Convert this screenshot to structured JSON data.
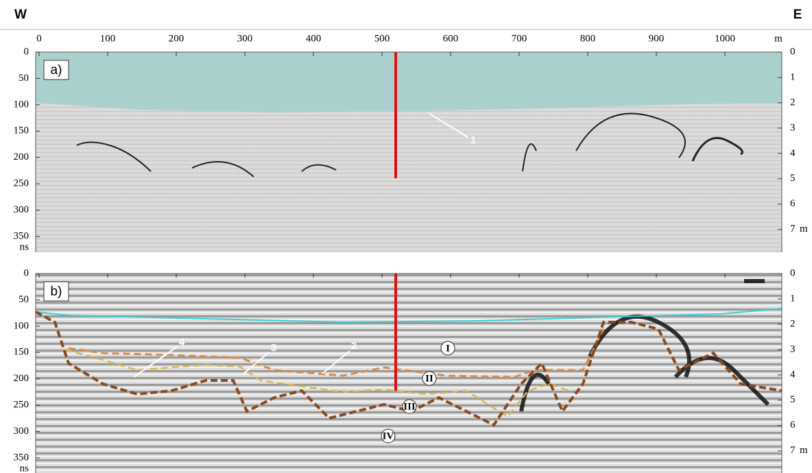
{
  "header": {
    "west": "W",
    "east": "E"
  },
  "distance_axis": {
    "ticks": [
      0,
      100,
      200,
      300,
      400,
      500,
      600,
      700,
      800,
      900,
      1000
    ],
    "unit": "m",
    "lim": [
      -5,
      1083
    ]
  },
  "panels": [
    {
      "label": "a)",
      "time_ticks": [
        0,
        50,
        100,
        150,
        200,
        250,
        300,
        350
      ],
      "time_unit": "ns",
      "time_lim": [
        0,
        380
      ],
      "depth_ticks": [
        0,
        1,
        2,
        3,
        4,
        5,
        6,
        7
      ],
      "depth_unit": "m",
      "depth_lim": [
        0,
        7.9
      ],
      "annotations": [
        "1"
      ]
    },
    {
      "label": "b)",
      "time_ticks": [
        0,
        50,
        100,
        150,
        200,
        250,
        300,
        350
      ],
      "time_unit": "ns",
      "time_lim": [
        0,
        380
      ],
      "depth_ticks": [
        0,
        1,
        2,
        3,
        4,
        5,
        6,
        7
      ],
      "depth_unit": "m",
      "depth_lim": [
        0,
        7.9
      ],
      "annotations": [
        "2",
        "3",
        "4",
        "I",
        "II",
        "III",
        "IV"
      ]
    }
  ]
}
